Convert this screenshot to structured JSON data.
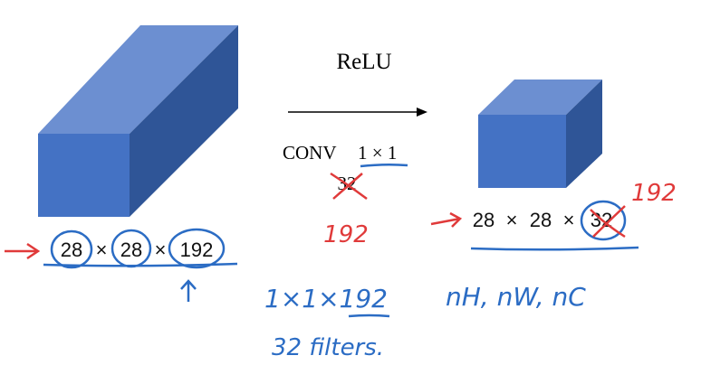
{
  "slide": {
    "operation_label": "ReLU",
    "conv_label": "CONV",
    "conv_size": "1 × 1",
    "original_filters": "32",
    "annotated_filters": "192",
    "input_volume": {
      "h": "28",
      "w": "28",
      "c": "192",
      "sep": "×"
    },
    "output_volume": {
      "h": "28",
      "w": "28",
      "c": "32",
      "sep": "×",
      "annotated_c": "192"
    },
    "notes": {
      "filter_shape": "1×1×192",
      "filter_count": "32 filters.",
      "dims": "nH, nW, nC"
    }
  },
  "colors": {
    "cube_front": "#4472c4",
    "cube_top": "#6c8fd1",
    "cube_side": "#2f5597",
    "ink_blue": "#2b6cc4",
    "ink_red": "#e03a3a"
  }
}
